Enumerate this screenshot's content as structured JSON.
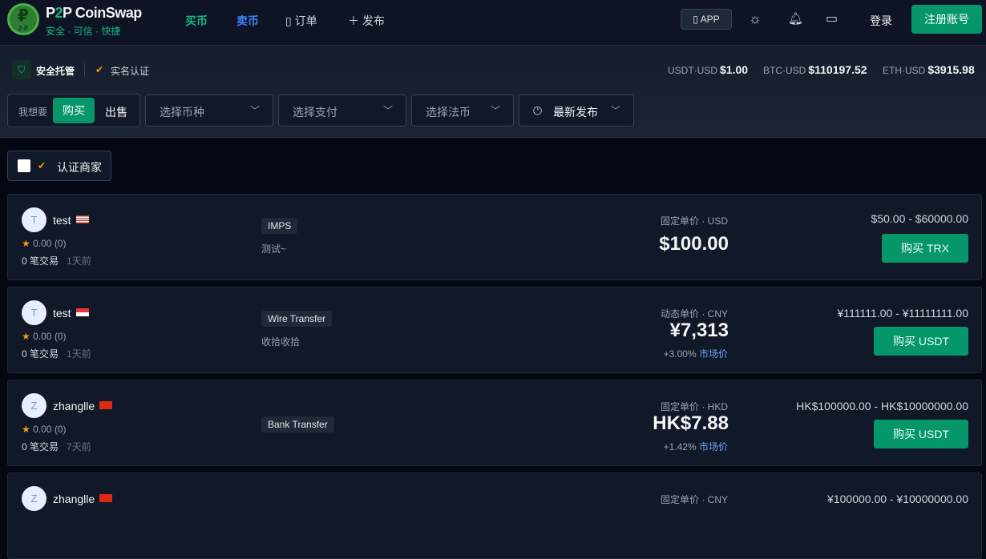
{
  "header": {
    "logo_text": "2-P",
    "brand_p1": "P",
    "brand_2": "2",
    "brand_p2": "P CoinSwap",
    "slogan": "安全 · 可信 · 快捷",
    "nav": {
      "buy": "买币",
      "sell": "卖币",
      "orders": "订单",
      "publish": "发布"
    },
    "app": "APP",
    "login": "登录",
    "register": "注册账号",
    "colors": {
      "buy": "#10b981",
      "sell": "#3b82f6",
      "accent": "#059669"
    }
  },
  "badges": {
    "escrow": "安全托管",
    "kyc": "实名认证"
  },
  "prices": [
    {
      "pair": "USDT·USD",
      "value": "$1.00"
    },
    {
      "pair": "BTC·USD",
      "value": "$110197.52"
    },
    {
      "pair": "ETH·USD",
      "value": "$3915.98"
    }
  ],
  "filters": {
    "want": "我想要",
    "buy": "购买",
    "sell": "出售",
    "coin": "选择币种",
    "payment": "选择支付",
    "fiat": "选择法币",
    "sort": "最新发布"
  },
  "verified_merchant": "认证商家",
  "ads": [
    {
      "avatar": "T",
      "name": "test",
      "flag": "us",
      "rating": "0.00",
      "rating_count": "(0)",
      "trades": "0 笔交易",
      "time": "1天前",
      "payment": "IMPS",
      "note": "测试~",
      "price_label": "固定单价",
      "currency": "· USD",
      "price": "$100.00",
      "premium": "",
      "market": "",
      "limit": "$50.00 - $60000.00",
      "action": "购买 TRX"
    },
    {
      "avatar": "T",
      "name": "test",
      "flag": "sg",
      "rating": "0.00",
      "rating_count": "(0)",
      "trades": "0 笔交易",
      "time": "1天前",
      "payment": "Wire Transfer",
      "note": "收拾收拾",
      "price_label": "动态单价",
      "currency": "· CNY",
      "price": "¥7,313",
      "premium": "+3.00%",
      "market": "市场价",
      "limit": "¥111111.00 - ¥11111111.00",
      "action": "购买 USDT"
    },
    {
      "avatar": "Z",
      "name": "zhanglle",
      "flag": "hk",
      "rating": "0.00",
      "rating_count": "(0)",
      "trades": "0 笔交易",
      "time": "7天前",
      "payment": "Bank Transfer",
      "note": "",
      "price_label": "固定单价",
      "currency": "· HKD",
      "price": "HK$7.88",
      "premium": "+1.42%",
      "market": "市场价",
      "limit": "HK$100000.00 - HK$10000000.00",
      "action": "购买 USDT"
    },
    {
      "avatar": "Z",
      "name": "zhanglle",
      "flag": "cn",
      "rating": "",
      "rating_count": "",
      "trades": "",
      "time": "",
      "payment": "",
      "note": "",
      "price_label": "固定单价",
      "currency": "· CNY",
      "price": "",
      "premium": "",
      "market": "",
      "limit": "¥100000.00 - ¥10000000.00",
      "action": ""
    }
  ]
}
